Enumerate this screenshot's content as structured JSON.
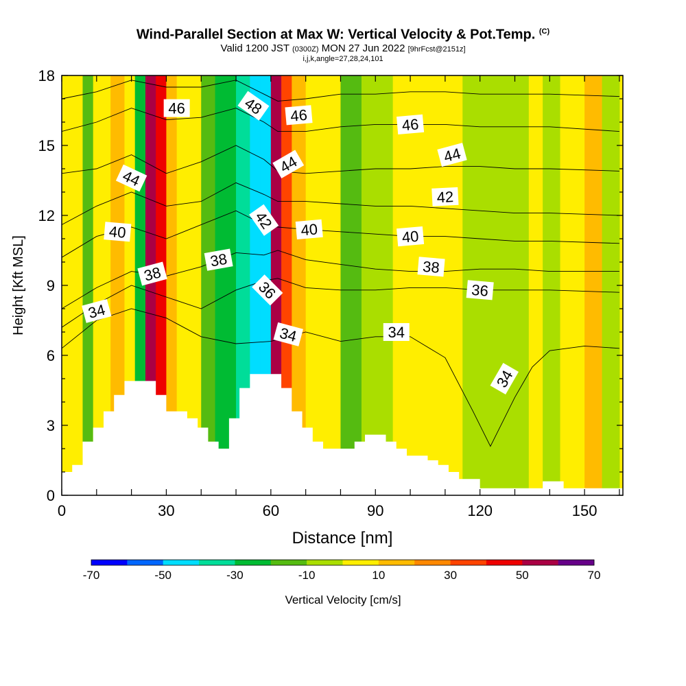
{
  "header": {
    "title": "Wind-Parallel Section at Max W: Vertical Velocity & Pot.Temp.",
    "copyright": "(C)",
    "valid_prefix": "Valid 1200 JST",
    "valid_utc": "(0300Z)",
    "valid_date": "MON 27 Jun 2022",
    "forecast": "[9hrFcst@2151z]",
    "grid_info": "i,j,k,angle=27,28,24,101"
  },
  "chart_data": {
    "type": "heatmap",
    "xlabel": "Distance [nm]",
    "ylabel": "Height [Kft MSL]",
    "xlim": [
      0,
      161
    ],
    "ylim": [
      0,
      18
    ],
    "x_ticks": [
      {
        "value": 0,
        "label": "0"
      },
      {
        "value": 30,
        "label": "30"
      },
      {
        "value": 60,
        "label": "60"
      },
      {
        "value": 90,
        "label": "90"
      },
      {
        "value": 120,
        "label": "120"
      },
      {
        "value": 150,
        "label": "150"
      }
    ],
    "y_ticks": [
      {
        "value": 0,
        "label": "0"
      },
      {
        "value": 3,
        "label": "3"
      },
      {
        "value": 6,
        "label": "6"
      },
      {
        "value": 9,
        "label": "9"
      },
      {
        "value": 12,
        "label": "12"
      },
      {
        "value": 15,
        "label": "15"
      },
      {
        "value": 18,
        "label": "18"
      }
    ],
    "colorbar": {
      "label": "Vertical Velocity [cm/s]",
      "range": [
        -70,
        70
      ],
      "step": 10,
      "tick_labels": [
        {
          "value": -70,
          "label": "-70"
        },
        {
          "value": -50,
          "label": "-50"
        },
        {
          "value": -30,
          "label": "-30"
        },
        {
          "value": -10,
          "label": "-10"
        },
        {
          "value": 10,
          "label": "10"
        },
        {
          "value": 30,
          "label": "30"
        },
        {
          "value": 50,
          "label": "50"
        },
        {
          "value": 70,
          "label": "70"
        }
      ],
      "colors": [
        "#0000ff",
        "#0066ff",
        "#00ddff",
        "#00dd99",
        "#00bb33",
        "#55bb11",
        "#aade00",
        "#ffee00",
        "#ffbb00",
        "#ff8800",
        "#ff4400",
        "#ee0000",
        "#aa0044",
        "#660088"
      ]
    },
    "velocity_bands": [
      {
        "x": [
          6,
          9
        ],
        "w": -15
      },
      {
        "x": [
          9,
          14
        ],
        "w": 0
      },
      {
        "x": [
          14,
          18
        ],
        "w": 15
      },
      {
        "x": [
          18,
          21
        ],
        "w": 8
      },
      {
        "x": [
          21,
          24
        ],
        "w": -30
      },
      {
        "x": [
          24,
          27
        ],
        "w": 55
      },
      {
        "x": [
          27,
          30
        ],
        "w": 45
      },
      {
        "x": [
          30,
          33
        ],
        "w": 10
      },
      {
        "x": [
          33,
          40
        ],
        "w": 0
      },
      {
        "x": [
          40,
          44
        ],
        "w": -15
      },
      {
        "x": [
          44,
          50
        ],
        "w": -25
      },
      {
        "x": [
          50,
          54
        ],
        "w": -38
      },
      {
        "x": [
          54,
          57
        ],
        "w": -45
      },
      {
        "x": [
          57,
          60
        ],
        "w": -50
      },
      {
        "x": [
          60,
          63
        ],
        "w": 55
      },
      {
        "x": [
          63,
          66
        ],
        "w": 35
      },
      {
        "x": [
          66,
          70
        ],
        "w": 15
      },
      {
        "x": [
          70,
          80
        ],
        "w": 2
      },
      {
        "x": [
          80,
          86
        ],
        "w": -20
      },
      {
        "x": [
          86,
          95
        ],
        "w": -5
      },
      {
        "x": [
          95,
          105
        ],
        "w": 8
      },
      {
        "x": [
          105,
          115
        ],
        "w": 5
      },
      {
        "x": [
          115,
          125
        ],
        "w": -5
      },
      {
        "x": [
          125,
          134
        ],
        "w": -5
      },
      {
        "x": [
          134,
          138
        ],
        "w": 8
      },
      {
        "x": [
          138,
          143
        ],
        "w": -5
      },
      {
        "x": [
          143,
          150
        ],
        "w": 5
      },
      {
        "x": [
          150,
          155
        ],
        "w": 12
      },
      {
        "x": [
          155,
          160
        ],
        "w": -5
      }
    ],
    "terrain_height": [
      {
        "x": 0,
        "h": 1.0
      },
      {
        "x": 3,
        "h": 1.3
      },
      {
        "x": 6,
        "h": 2.3
      },
      {
        "x": 9,
        "h": 2.9
      },
      {
        "x": 12,
        "h": 3.6
      },
      {
        "x": 15,
        "h": 4.3
      },
      {
        "x": 18,
        "h": 4.9
      },
      {
        "x": 21,
        "h": 4.9
      },
      {
        "x": 24,
        "h": 4.9
      },
      {
        "x": 27,
        "h": 4.3
      },
      {
        "x": 30,
        "h": 3.6
      },
      {
        "x": 36,
        "h": 3.3
      },
      {
        "x": 39,
        "h": 2.9
      },
      {
        "x": 42,
        "h": 2.3
      },
      {
        "x": 45,
        "h": 2.0
      },
      {
        "x": 48,
        "h": 3.3
      },
      {
        "x": 51,
        "h": 4.6
      },
      {
        "x": 54,
        "h": 5.2
      },
      {
        "x": 57,
        "h": 5.2
      },
      {
        "x": 60,
        "h": 5.2
      },
      {
        "x": 63,
        "h": 4.6
      },
      {
        "x": 66,
        "h": 3.6
      },
      {
        "x": 69,
        "h": 2.9
      },
      {
        "x": 72,
        "h": 2.3
      },
      {
        "x": 75,
        "h": 2.0
      },
      {
        "x": 78,
        "h": 2.0
      },
      {
        "x": 81,
        "h": 2.0
      },
      {
        "x": 84,
        "h": 2.3
      },
      {
        "x": 87,
        "h": 2.6
      },
      {
        "x": 90,
        "h": 2.6
      },
      {
        "x": 93,
        "h": 2.3
      },
      {
        "x": 96,
        "h": 2.0
      },
      {
        "x": 99,
        "h": 1.7
      },
      {
        "x": 102,
        "h": 1.7
      },
      {
        "x": 105,
        "h": 1.5
      },
      {
        "x": 108,
        "h": 1.3
      },
      {
        "x": 111,
        "h": 1.0
      },
      {
        "x": 114,
        "h": 0.7
      },
      {
        "x": 117,
        "h": 0.7
      },
      {
        "x": 120,
        "h": 0.3
      },
      {
        "x": 135,
        "h": 0.3
      },
      {
        "x": 138,
        "h": 0.6
      },
      {
        "x": 141,
        "h": 0.6
      },
      {
        "x": 144,
        "h": 0.3
      },
      {
        "x": 160,
        "h": 0.3
      }
    ],
    "isentropes": [
      {
        "theta": 34,
        "pts": [
          [
            0,
            6.3
          ],
          [
            10,
            7.5
          ],
          [
            20,
            8.0
          ],
          [
            30,
            7.6
          ],
          [
            40,
            6.8
          ],
          [
            50,
            6.5
          ],
          [
            60,
            6.6
          ],
          [
            70,
            7.0
          ],
          [
            80,
            6.6
          ],
          [
            90,
            6.8
          ],
          [
            100,
            6.8
          ],
          [
            110,
            5.9
          ],
          [
            118,
            3.6
          ],
          [
            123,
            2.1
          ],
          [
            130,
            4.2
          ],
          [
            135,
            5.5
          ],
          [
            140,
            6.2
          ],
          [
            150,
            6.4
          ],
          [
            160,
            6.3
          ]
        ]
      },
      {
        "theta": 36,
        "pts": [
          [
            0,
            7.2
          ],
          [
            10,
            8.2
          ],
          [
            20,
            9.0
          ],
          [
            30,
            8.5
          ],
          [
            40,
            8.0
          ],
          [
            50,
            8.8
          ],
          [
            58,
            9.2
          ],
          [
            62,
            9.3
          ],
          [
            70,
            8.9
          ],
          [
            80,
            8.8
          ],
          [
            90,
            8.8
          ],
          [
            100,
            8.9
          ],
          [
            110,
            8.9
          ],
          [
            120,
            8.8
          ],
          [
            130,
            8.8
          ],
          [
            140,
            8.8
          ],
          [
            160,
            8.7
          ]
        ]
      },
      {
        "theta": 38,
        "pts": [
          [
            0,
            8.0
          ],
          [
            10,
            8.9
          ],
          [
            20,
            9.6
          ],
          [
            30,
            9.4
          ],
          [
            40,
            9.8
          ],
          [
            50,
            10.4
          ],
          [
            58,
            10.3
          ],
          [
            62,
            10.5
          ],
          [
            70,
            10.1
          ],
          [
            80,
            9.9
          ],
          [
            90,
            9.7
          ],
          [
            100,
            9.6
          ],
          [
            110,
            9.6
          ],
          [
            120,
            9.7
          ],
          [
            130,
            9.7
          ],
          [
            140,
            9.6
          ],
          [
            160,
            9.6
          ]
        ]
      },
      {
        "theta": 40,
        "pts": [
          [
            0,
            10.2
          ],
          [
            10,
            11.1
          ],
          [
            20,
            11.5
          ],
          [
            30,
            11.0
          ],
          [
            40,
            11.6
          ],
          [
            50,
            12.2
          ],
          [
            58,
            11.6
          ],
          [
            62,
            11.5
          ],
          [
            70,
            11.4
          ],
          [
            80,
            11.3
          ],
          [
            90,
            11.2
          ],
          [
            100,
            11.1
          ],
          [
            110,
            11.1
          ],
          [
            120,
            11.0
          ],
          [
            130,
            10.9
          ],
          [
            140,
            10.9
          ],
          [
            160,
            10.8
          ]
        ]
      },
      {
        "theta": 42,
        "pts": [
          [
            0,
            11.6
          ],
          [
            10,
            12.4
          ],
          [
            20,
            13.0
          ],
          [
            30,
            12.4
          ],
          [
            40,
            12.6
          ],
          [
            50,
            13.4
          ],
          [
            58,
            12.9
          ],
          [
            62,
            12.6
          ],
          [
            70,
            12.6
          ],
          [
            80,
            12.5
          ],
          [
            90,
            12.4
          ],
          [
            100,
            12.4
          ],
          [
            110,
            12.3
          ],
          [
            120,
            12.2
          ],
          [
            130,
            12.1
          ],
          [
            140,
            12.1
          ],
          [
            160,
            12.0
          ]
        ]
      },
      {
        "theta": 44,
        "pts": [
          [
            0,
            13.8
          ],
          [
            10,
            14.0
          ],
          [
            20,
            14.6
          ],
          [
            30,
            13.8
          ],
          [
            40,
            14.3
          ],
          [
            50,
            15.0
          ],
          [
            58,
            14.4
          ],
          [
            62,
            13.9
          ],
          [
            70,
            13.8
          ],
          [
            80,
            13.9
          ],
          [
            90,
            14.0
          ],
          [
            100,
            14.0
          ],
          [
            110,
            14.1
          ],
          [
            120,
            14.1
          ],
          [
            130,
            14.0
          ],
          [
            140,
            14.0
          ],
          [
            160,
            13.9
          ]
        ]
      },
      {
        "theta": 46,
        "pts": [
          [
            0,
            15.6
          ],
          [
            10,
            16.0
          ],
          [
            20,
            16.6
          ],
          [
            30,
            16.1
          ],
          [
            40,
            16.2
          ],
          [
            50,
            16.6
          ],
          [
            58,
            16.0
          ],
          [
            62,
            15.6
          ],
          [
            70,
            15.6
          ],
          [
            80,
            15.8
          ],
          [
            90,
            15.9
          ],
          [
            100,
            15.9
          ],
          [
            110,
            15.9
          ],
          [
            120,
            15.8
          ],
          [
            130,
            15.8
          ],
          [
            140,
            15.8
          ],
          [
            160,
            15.6
          ]
        ]
      },
      {
        "theta": 48,
        "pts": [
          [
            0,
            17.0
          ],
          [
            10,
            17.3
          ],
          [
            20,
            17.8
          ],
          [
            30,
            17.5
          ],
          [
            40,
            17.5
          ],
          [
            50,
            17.8
          ],
          [
            58,
            17.2
          ],
          [
            62,
            16.9
          ],
          [
            70,
            17.0
          ],
          [
            80,
            17.2
          ],
          [
            90,
            17.2
          ],
          [
            100,
            17.3
          ],
          [
            110,
            17.3
          ],
          [
            120,
            17.2
          ],
          [
            130,
            17.2
          ],
          [
            140,
            17.2
          ],
          [
            160,
            17.1
          ]
        ]
      }
    ],
    "contour_labels": [
      {
        "text": "46",
        "x": 33,
        "y": 16.6,
        "angle": 0
      },
      {
        "text": "48",
        "x": 55,
        "y": 16.7,
        "angle": 35
      },
      {
        "text": "46",
        "x": 68,
        "y": 16.3,
        "angle": -5
      },
      {
        "text": "46",
        "x": 100,
        "y": 15.9,
        "angle": -5
      },
      {
        "text": "44",
        "x": 20,
        "y": 13.6,
        "angle": 25
      },
      {
        "text": "44",
        "x": 65,
        "y": 14.2,
        "angle": -30
      },
      {
        "text": "44",
        "x": 112,
        "y": 14.6,
        "angle": -15
      },
      {
        "text": "42",
        "x": 110,
        "y": 12.8,
        "angle": -3
      },
      {
        "text": "42",
        "x": 58,
        "y": 11.8,
        "angle": 55
      },
      {
        "text": "40",
        "x": 16,
        "y": 11.3,
        "angle": 5
      },
      {
        "text": "40",
        "x": 71,
        "y": 11.4,
        "angle": -5
      },
      {
        "text": "40",
        "x": 100,
        "y": 11.1,
        "angle": -5
      },
      {
        "text": "38",
        "x": 26,
        "y": 9.5,
        "angle": -15
      },
      {
        "text": "38",
        "x": 45,
        "y": 10.1,
        "angle": -10
      },
      {
        "text": "38",
        "x": 106,
        "y": 9.8,
        "angle": 5
      },
      {
        "text": "36",
        "x": 59,
        "y": 8.8,
        "angle": 45
      },
      {
        "text": "36",
        "x": 120,
        "y": 8.8,
        "angle": 5
      },
      {
        "text": "34",
        "x": 10,
        "y": 7.9,
        "angle": -15
      },
      {
        "text": "34",
        "x": 65,
        "y": 6.9,
        "angle": 15
      },
      {
        "text": "34",
        "x": 96,
        "y": 7.0,
        "angle": 0
      },
      {
        "text": "34",
        "x": 127,
        "y": 5.0,
        "angle": -60
      }
    ]
  }
}
